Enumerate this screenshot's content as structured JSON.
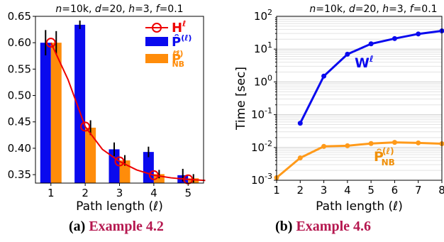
{
  "chart_data": [
    {
      "type": "bar",
      "title": "n=10k, d=20, h=3, f=0.1",
      "xlabel": "Path length (ℓ)",
      "ylabel": "",
      "categories": [
        "1",
        "2",
        "3",
        "4",
        "5"
      ],
      "ylim": [
        0.334,
        0.65
      ],
      "yticks": [
        "0.35",
        "0.40",
        "0.45",
        "0.50",
        "0.55",
        "0.60",
        "0.65"
      ],
      "series": [
        {
          "name": "P̂(ℓ)",
          "kind": "bar",
          "color": "#0a0aee",
          "values": [
            0.6,
            0.634,
            0.398,
            0.393,
            0.349
          ],
          "err": [
            0.024,
            0.008,
            0.013,
            0.01,
            0.012
          ]
        },
        {
          "name": "P̂(ℓ)NB",
          "kind": "bar",
          "color": "#ff8c0a",
          "values": [
            0.6,
            0.439,
            0.377,
            0.351,
            0.343
          ],
          "err": [
            0.022,
            0.014,
            0.01,
            0.008,
            0.008
          ]
        },
        {
          "name": "Hℓ",
          "kind": "line",
          "color": "#ee0000",
          "x": [
            1,
            1.5,
            2,
            2.5,
            3,
            3.5,
            4,
            4.5,
            5,
            5.5
          ],
          "values": [
            0.6,
            0.53,
            0.441,
            0.398,
            0.375,
            0.359,
            0.349,
            0.344,
            0.341,
            0.339
          ],
          "markers": [
            1,
            2,
            3,
            4,
            5
          ]
        }
      ],
      "legend": {
        "position": "top-right",
        "entries": [
          "H",
          "P̂",
          "P̂"
        ]
      },
      "grid": false
    },
    {
      "type": "line",
      "title": "n=10k, d=20, h=3, f=0.1",
      "xlabel": "Path length (ℓ)",
      "ylabel": "Time [sec]",
      "xlim": [
        1,
        8
      ],
      "xticks": [
        "1",
        "2",
        "3",
        "4",
        "5",
        "6",
        "7",
        "8"
      ],
      "yscale": "log",
      "ylim": [
        0.001,
        100
      ],
      "yticks": [
        "10-3",
        "10-2",
        "10-1",
        "100",
        "101",
        "102"
      ],
      "grid": true,
      "series": [
        {
          "name": "Wℓ",
          "color": "#0a0aee",
          "x": [
            2,
            3,
            4,
            5,
            6,
            7,
            8
          ],
          "values": [
            0.055,
            1.5,
            7.0,
            14.5,
            21.0,
            29.0,
            36.0
          ]
        },
        {
          "name": "P̂(ℓ)NB",
          "color": "#ff9a1a",
          "x": [
            1,
            2,
            3,
            4,
            5,
            6,
            7,
            8
          ],
          "values": [
            0.0012,
            0.0048,
            0.0108,
            0.0113,
            0.0132,
            0.0143,
            0.0138,
            0.013
          ]
        }
      ]
    }
  ],
  "captions": [
    {
      "label": "(a)",
      "ref": "Example 4.2"
    },
    {
      "label": "(b)",
      "ref": "Example 4.6"
    }
  ]
}
